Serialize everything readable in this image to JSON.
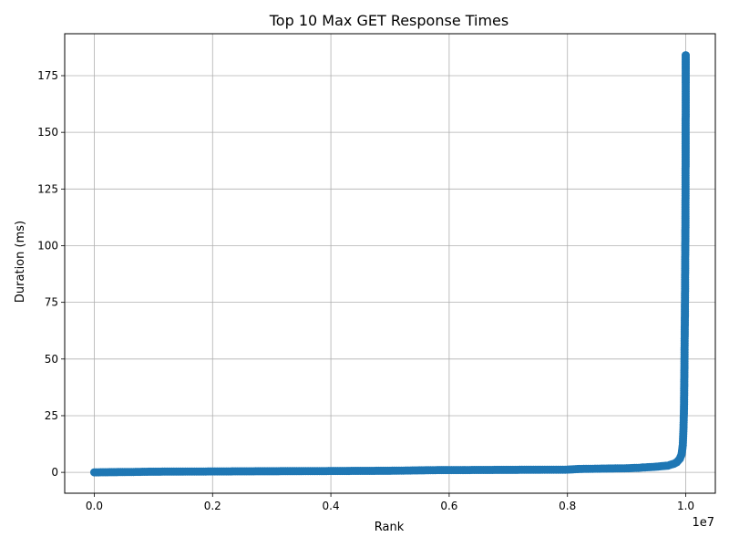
{
  "chart_data": {
    "type": "line",
    "title": "Top 10 Max GET Response Times",
    "xlabel": "Rank",
    "ylabel": "Duration (ms)",
    "x_offset_label": "1e7",
    "xlim": [
      -500000,
      10500000
    ],
    "ylim": [
      -9.2,
      193.5
    ],
    "grid": true,
    "marker": "circle",
    "color": "#1f77b4",
    "x_ticks": [
      {
        "value": 0,
        "label": "0.0"
      },
      {
        "value": 2000000,
        "label": "0.2"
      },
      {
        "value": 4000000,
        "label": "0.4"
      },
      {
        "value": 6000000,
        "label": "0.6"
      },
      {
        "value": 8000000,
        "label": "0.8"
      },
      {
        "value": 10000000,
        "label": "1.0"
      }
    ],
    "y_ticks": [
      {
        "value": 0,
        "label": "0"
      },
      {
        "value": 25,
        "label": "25"
      },
      {
        "value": 50,
        "label": "50"
      },
      {
        "value": 75,
        "label": "75"
      },
      {
        "value": 100,
        "label": "100"
      },
      {
        "value": 125,
        "label": "125"
      },
      {
        "value": 150,
        "label": "150"
      },
      {
        "value": 175,
        "label": "175"
      }
    ],
    "series": [
      {
        "x": [
          0,
          700000,
          1000000,
          2000000,
          3000000,
          4000000,
          5000000,
          5800000,
          6000000,
          7000000,
          8000000,
          8200000,
          9000000,
          9200000,
          9500000,
          9700000,
          9800000,
          9850000,
          9900000,
          9930000,
          9950000,
          9960000,
          9970000,
          9975000,
          9980000,
          9985000,
          9988000,
          9990000,
          9992000,
          9994000,
          9995000,
          9996000,
          9997000,
          9998000,
          9999000,
          9999500,
          9999800,
          10000000
        ],
        "y": [
          0,
          0.2,
          0.3,
          0.4,
          0.5,
          0.6,
          0.7,
          1.0,
          1.0,
          1.1,
          1.2,
          1.5,
          1.8,
          2.0,
          2.5,
          3.0,
          3.8,
          4.5,
          6,
          8,
          12,
          18,
          28,
          40,
          55,
          70,
          80,
          92,
          100,
          108,
          116,
          125,
          135,
          147,
          165,
          172,
          177,
          184
        ]
      }
    ]
  }
}
